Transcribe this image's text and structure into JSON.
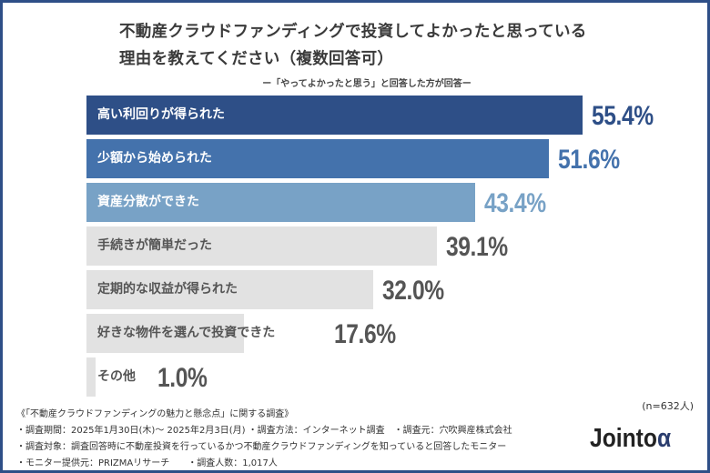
{
  "chart_data": {
    "type": "bar",
    "orientation": "horizontal",
    "title": "不動産クラウドファンディングで投資してよかったと思っている",
    "title_line2": "理由を教えてください（複数回答可）",
    "subtitle": "ー「やってよかったと思う」と回答した方が回答ー",
    "categories": [
      "高い利回りが得られた",
      "少額から始められた",
      "資産分散ができた",
      "手続きが簡単だった",
      "定期的な収益が得られた",
      "好きな物件を選んで投資できた",
      "その他"
    ],
    "values": [
      55.4,
      51.6,
      43.4,
      39.1,
      32.0,
      17.6,
      1.0
    ],
    "value_labels": [
      "55.4%",
      "51.6%",
      "43.4%",
      "39.1%",
      "32.0%",
      "17.6%",
      "1.0%"
    ],
    "bar_colors": [
      "#2e4f87",
      "#4472ac",
      "#78a2c6",
      "#e2e2e2",
      "#e2e2e2",
      "#e2e2e2",
      "#e2e2e2"
    ],
    "value_colors": [
      "#2e4f87",
      "#4472ac",
      "#78a2c6",
      "#555555",
      "#555555",
      "#555555",
      "#555555"
    ],
    "label_colors": [
      "#ffffff",
      "#ffffff",
      "#ffffff",
      "#555555",
      "#555555",
      "#555555",
      "#555555"
    ],
    "xlim": [
      0,
      60
    ],
    "grid": false,
    "sample": "(n=632人)"
  },
  "notes": [
    "《「不動産クラウドファンディングの魅力と懸念点」に関する調査》",
    "・調査期間：2025年1月30日(木)〜 2025年2月3日(月) ・調査方法：インターネット調査　・調査元：穴吹興産株式会社",
    "・調査対象：調査回答時に不動産投資を行っているかつ不動産クラウドファンディングを知っていると回答したモニター",
    "・モニター提供元：PRIZMAリサーチ　　・調査人数：1,017人"
  ],
  "logo": {
    "text": "Jointo",
    "mark": "α"
  }
}
